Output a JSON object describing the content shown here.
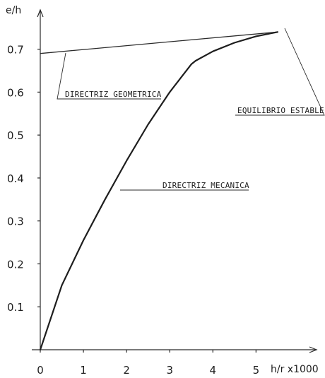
{
  "chart_data": {
    "type": "line",
    "title": "",
    "xlabel": "h/r x1000",
    "ylabel": "e/h",
    "xlim": [
      0,
      5.6
    ],
    "ylim": [
      0,
      0.78
    ],
    "x_ticks": [
      {
        "value": 0,
        "label": "0"
      },
      {
        "value": 1,
        "label": "1"
      },
      {
        "value": 2,
        "label": "2"
      },
      {
        "value": 3,
        "label": "3"
      },
      {
        "value": 4,
        "label": "4"
      },
      {
        "value": 5,
        "label": "5"
      }
    ],
    "y_ticks": [
      {
        "value": 0.1,
        "label": "0.1"
      },
      {
        "value": 0.2,
        "label": "0.2"
      },
      {
        "value": 0.3,
        "label": "0.3"
      },
      {
        "value": 0.4,
        "label": "0.4"
      },
      {
        "value": 0.5,
        "label": "0.5"
      },
      {
        "value": 0.6,
        "label": "0.6"
      },
      {
        "value": 0.7,
        "label": "0.7"
      }
    ],
    "grid": false,
    "series": [
      {
        "key": "geometrica",
        "color": "#2a2a2a",
        "width": 1.3,
        "x": [
          0,
          5.5
        ],
        "y": [
          0.69,
          0.74
        ]
      },
      {
        "key": "mecanica",
        "color": "#1e1e1e",
        "width": 2.2,
        "x": [
          0,
          0.5,
          1.0,
          1.5,
          2.0,
          2.5,
          3.0,
          3.5,
          3.6,
          4.0,
          4.5,
          5.0,
          5.5
        ],
        "y": [
          0,
          0.15,
          0.255,
          0.35,
          0.44,
          0.525,
          0.6,
          0.665,
          0.673,
          0.695,
          0.715,
          0.73,
          0.74
        ]
      }
    ],
    "annotations": [
      {
        "key": "geometrica",
        "text": "DIRECTRIZ GEOMETRICA"
      },
      {
        "key": "estable",
        "text": "EQUILIBRIO ESTABLE"
      },
      {
        "key": "mecanica",
        "text": "DIRECTRIZ MECANICA"
      }
    ]
  }
}
